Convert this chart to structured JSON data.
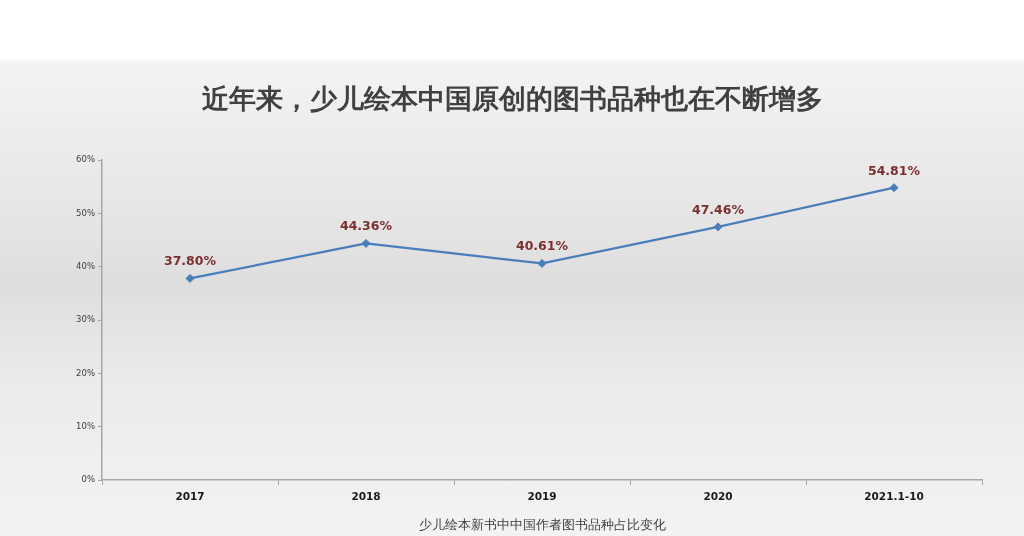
{
  "chart_data": {
    "type": "line",
    "title": "近年来，少儿绘本中国原创的图书品种也在不断增多",
    "xlabel": "少儿绘本新书中中国作者图书品种占比变化",
    "categories": [
      "2017",
      "2018",
      "2019",
      "2020",
      "2021.1-10"
    ],
    "values": [
      37.8,
      44.36,
      40.61,
      47.46,
      54.81
    ],
    "value_labels": [
      "37.80%",
      "44.36%",
      "40.61%",
      "47.46%",
      "54.81%"
    ],
    "color": "#4a7ebb",
    "ylim": [
      0,
      60
    ],
    "yticks": [
      {
        "value": 0,
        "label": "0%"
      },
      {
        "value": 10,
        "label": "10%"
      },
      {
        "value": 20,
        "label": "20%"
      },
      {
        "value": 30,
        "label": "30%"
      },
      {
        "value": 40,
        "label": "40%"
      },
      {
        "value": 50,
        "label": "50%"
      },
      {
        "value": 60,
        "label": "60%"
      }
    ],
    "grid": false,
    "legend": false,
    "marker": "diamond",
    "line_style": "solid"
  }
}
